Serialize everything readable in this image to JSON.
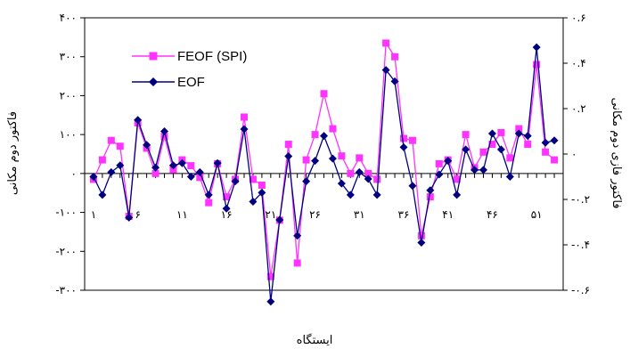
{
  "chart_data": {
    "type": "line",
    "title": "",
    "xlabel": "ایستگاه",
    "ylabel": "فاکتور دوم مکانی",
    "y2label": "فاکتور فازی دوم مکانی",
    "x": [
      1,
      2,
      3,
      4,
      5,
      6,
      7,
      8,
      9,
      10,
      11,
      12,
      13,
      14,
      15,
      16,
      17,
      18,
      19,
      20,
      21,
      22,
      23,
      24,
      25,
      26,
      27,
      28,
      29,
      30,
      31,
      32,
      33,
      34,
      35,
      36,
      37,
      38,
      39,
      40,
      41,
      42,
      43,
      44,
      45,
      46,
      47,
      48,
      49,
      50,
      51,
      52,
      53
    ],
    "xticks": [
      1,
      6,
      11,
      16,
      21,
      26,
      31,
      36,
      41,
      46,
      51
    ],
    "xtick_labels": [
      "١",
      "۶",
      "١١",
      "١۶",
      "٢١",
      "٢۶",
      "٣١",
      "٣۶",
      "۴١",
      "۴۶",
      "۵١"
    ],
    "xlim": [
      0,
      54
    ],
    "ylim": [
      -300,
      400
    ],
    "yticks": [
      -300,
      -200,
      -100,
      0,
      100,
      200,
      300,
      400
    ],
    "ytick_labels": [
      "-٣٠٠",
      "-٢٠٠",
      "-١٠٠",
      "٠",
      "١٠٠",
      "٢٠٠",
      "٣٠٠",
      "۴٠٠"
    ],
    "y2lim": [
      -0.6,
      0.6
    ],
    "y2ticks": [
      -0.6,
      -0.4,
      -0.2,
      0,
      0.2,
      0.4,
      0.6
    ],
    "y2tick_labels": [
      "-٠.۶",
      "-٠.۴",
      "-٠.٢",
      "٠",
      "٠.٢",
      "٠.۴",
      "٠.۶"
    ],
    "grid": false,
    "legend_position": "top-left",
    "series": [
      {
        "name": "FEOF (SPI)",
        "axis": "left",
        "color": "#ff33ff",
        "marker": "square",
        "values": [
          -15,
          35,
          85,
          70,
          -110,
          130,
          65,
          0,
          95,
          10,
          35,
          20,
          -10,
          -75,
          25,
          -60,
          -15,
          145,
          -15,
          -30,
          -265,
          -120,
          75,
          -230,
          35,
          100,
          205,
          115,
          45,
          0,
          40,
          0,
          -15,
          335,
          300,
          90,
          85,
          -160,
          -60,
          25,
          35,
          -15,
          100,
          15,
          55,
          75,
          105,
          40,
          115,
          75,
          280,
          55,
          35
        ]
      },
      {
        "name": "EOF",
        "axis": "right",
        "color": "#000080",
        "marker": "diamond",
        "values": [
          -0.1,
          -0.18,
          -0.08,
          -0.05,
          -0.28,
          0.15,
          0.04,
          -0.06,
          0.1,
          -0.05,
          -0.04,
          -0.1,
          -0.08,
          -0.18,
          -0.04,
          -0.24,
          -0.12,
          0.11,
          -0.21,
          -0.17,
          -0.65,
          -0.29,
          -0.01,
          -0.36,
          -0.12,
          -0.03,
          0.08,
          -0.02,
          -0.13,
          -0.18,
          -0.08,
          -0.11,
          -0.18,
          0.37,
          0.32,
          0.03,
          -0.14,
          -0.39,
          -0.16,
          -0.09,
          -0.03,
          -0.18,
          0.02,
          -0.07,
          -0.07,
          0.09,
          0.02,
          -0.1,
          0.09,
          0.08,
          0.47,
          0.05,
          0.06
        ]
      }
    ]
  }
}
